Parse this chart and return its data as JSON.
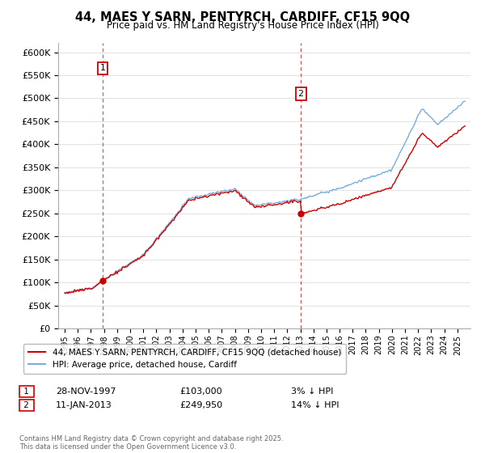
{
  "title": "44, MAES Y SARN, PENTYRCH, CARDIFF, CF15 9QQ",
  "subtitle": "Price paid vs. HM Land Registry's House Price Index (HPI)",
  "ylim": [
    0,
    620000
  ],
  "yticks": [
    0,
    50000,
    100000,
    150000,
    200000,
    250000,
    300000,
    350000,
    400000,
    450000,
    500000,
    550000,
    600000
  ],
  "xlim_start": 1994.5,
  "xlim_end": 2026.0,
  "sale1_date": 1997.91,
  "sale1_price": 103000,
  "sale1_label": "1",
  "sale2_date": 2013.04,
  "sale2_price": 249950,
  "sale2_label": "2",
  "legend_line1": "44, MAES Y SARN, PENTYRCH, CARDIFF, CF15 9QQ (detached house)",
  "legend_line2": "HPI: Average price, detached house, Cardiff",
  "annotation1_date": "28-NOV-1997",
  "annotation1_price": "£103,000",
  "annotation1_pct": "3% ↓ HPI",
  "annotation2_date": "11-JAN-2013",
  "annotation2_price": "£249,950",
  "annotation2_pct": "14% ↓ HPI",
  "footnote": "Contains HM Land Registry data © Crown copyright and database right 2025.\nThis data is licensed under the Open Government Licence v3.0.",
  "hpi_color": "#7aaddc",
  "sale_color": "#cc0000",
  "vline_color": "#cc0000",
  "grid_color": "#dddddd",
  "background_color": "#ffffff"
}
